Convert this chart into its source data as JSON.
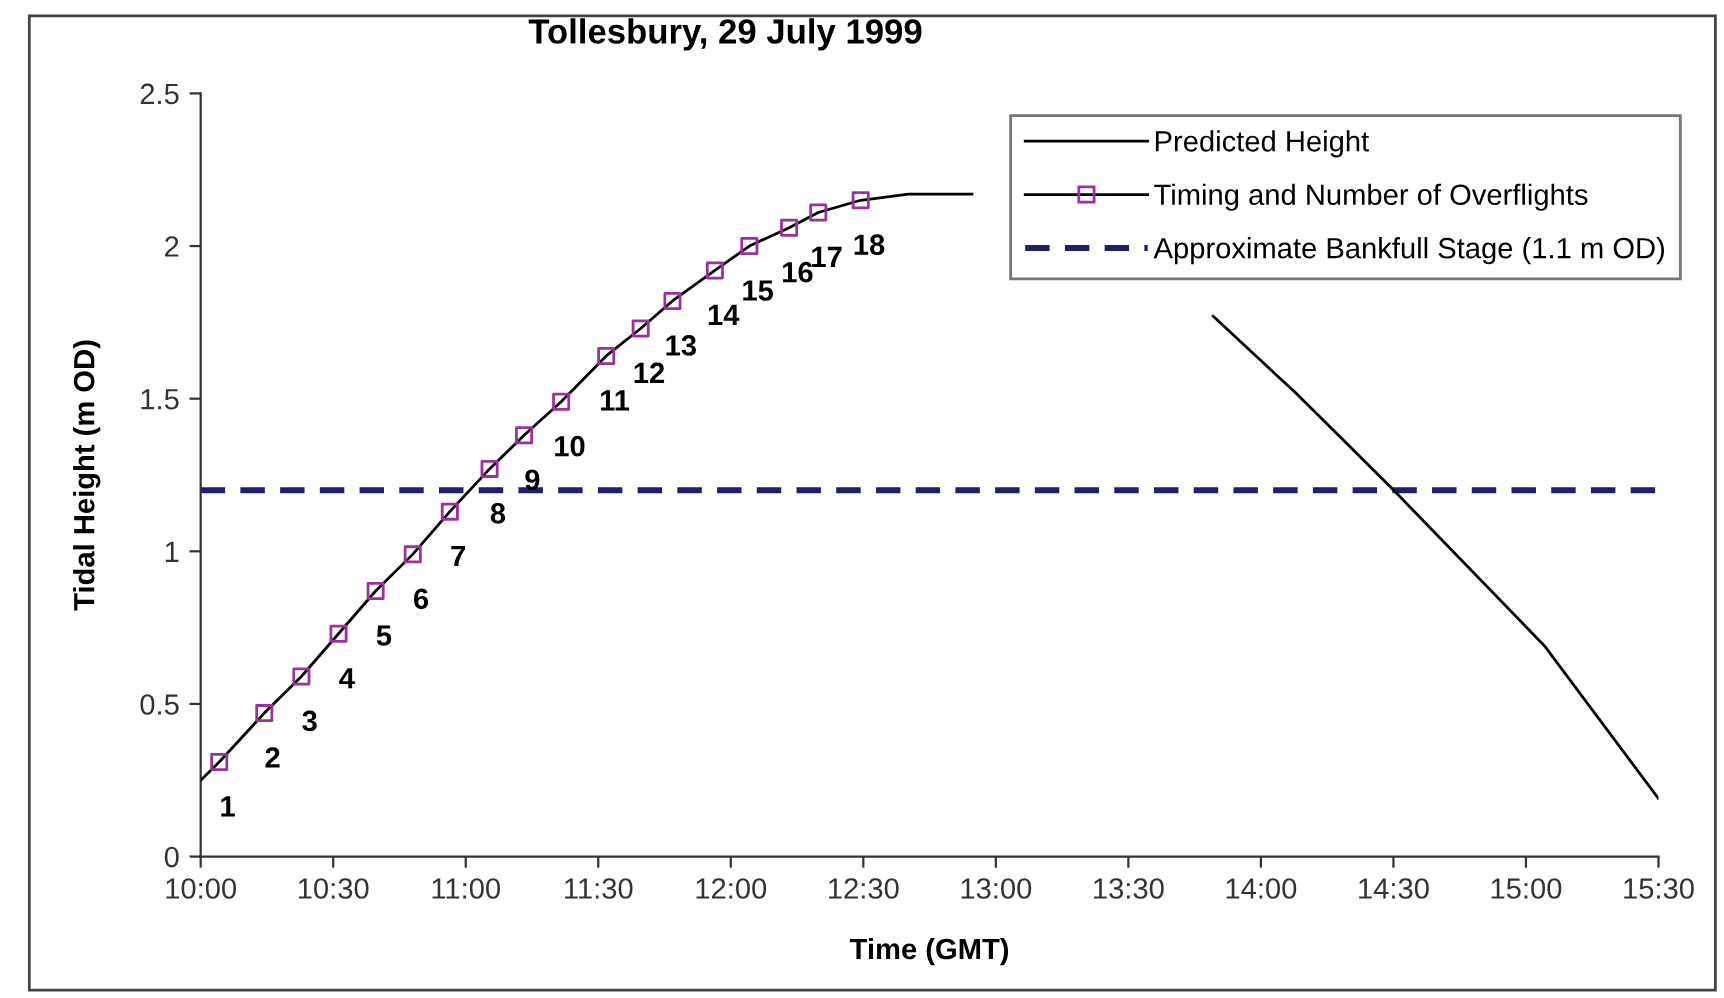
{
  "chart_data": {
    "type": "line",
    "title": "Tollesbury, 29 July 1999",
    "xlabel": "Time (GMT)",
    "ylabel": "Tidal Height (m OD)",
    "series": [
      {
        "name": "Predicted Height",
        "color": "#000000",
        "marker": "none",
        "x": [
          10.0,
          10.07,
          10.24,
          10.38,
          10.52,
          10.66,
          10.8,
          10.94,
          11.09,
          11.22,
          11.36,
          11.53,
          11.66,
          11.78,
          11.94,
          12.07,
          12.22,
          12.33,
          12.49,
          12.67,
          12.91,
          13.0,
          13.82,
          14.13,
          14.49,
          15.07,
          15.5
        ],
        "values": [
          0.25,
          0.31,
          0.47,
          0.59,
          0.73,
          0.87,
          0.99,
          1.13,
          1.27,
          1.38,
          1.49,
          1.64,
          1.73,
          1.82,
          1.92,
          2.0,
          2.06,
          2.11,
          2.15,
          2.17,
          2.17,
          null,
          1.77,
          1.52,
          1.21,
          0.69,
          0.19
        ]
      },
      {
        "name": "Timing and Number of Overflights",
        "type": "scatter",
        "color": "#993399",
        "marker": "square",
        "x": [
          10.07,
          10.24,
          10.38,
          10.52,
          10.66,
          10.8,
          10.94,
          11.09,
          11.22,
          11.36,
          11.53,
          11.66,
          11.78,
          11.94,
          12.07,
          12.22,
          12.33,
          12.49
        ],
        "values": [
          0.31,
          0.47,
          0.59,
          0.73,
          0.87,
          0.99,
          1.13,
          1.27,
          1.38,
          1.49,
          1.64,
          1.73,
          1.82,
          1.92,
          2.0,
          2.06,
          2.11,
          2.15
        ]
      }
    ],
    "annotations": [
      {
        "text": "1",
        "x": 10.07,
        "y": 0.31
      },
      {
        "text": "2",
        "x": 10.24,
        "y": 0.47
      },
      {
        "text": "3",
        "x": 10.38,
        "y": 0.59
      },
      {
        "text": "4",
        "x": 10.52,
        "y": 0.73
      },
      {
        "text": "5",
        "x": 10.66,
        "y": 0.87
      },
      {
        "text": "6",
        "x": 10.8,
        "y": 0.99
      },
      {
        "text": "7",
        "x": 10.94,
        "y": 1.13
      },
      {
        "text": "8",
        "x": 11.09,
        "y": 1.27
      },
      {
        "text": "9",
        "x": 11.22,
        "y": 1.38
      },
      {
        "text": "10",
        "x": 11.36,
        "y": 1.49
      },
      {
        "text": "11",
        "x": 11.53,
        "y": 1.64
      },
      {
        "text": "12",
        "x": 11.66,
        "y": 1.73
      },
      {
        "text": "13",
        "x": 11.78,
        "y": 1.82
      },
      {
        "text": "14",
        "x": 11.94,
        "y": 1.92
      },
      {
        "text": "15",
        "x": 12.07,
        "y": 2.0
      },
      {
        "text": "16",
        "x": 12.22,
        "y": 2.06
      },
      {
        "text": "17",
        "x": 12.33,
        "y": 2.11
      },
      {
        "text": "18",
        "x": 12.49,
        "y": 2.15
      }
    ],
    "ref_lines": [
      {
        "axis": "y",
        "value": 1.2,
        "label": "Approximate Bankfull Stage (1.1 m OD)",
        "color": "#1f1f6e",
        "line_style": "dashed"
      }
    ],
    "xlim": [
      10,
      15.5
    ],
    "xticks": [
      {
        "value": 10,
        "label": "10:00"
      },
      {
        "value": 10.5,
        "label": "10:30"
      },
      {
        "value": 11,
        "label": "11:00"
      },
      {
        "value": 11.5,
        "label": "11:30"
      },
      {
        "value": 12,
        "label": "12:00"
      },
      {
        "value": 12.5,
        "label": "12:30"
      },
      {
        "value": 13,
        "label": "13:00"
      },
      {
        "value": 13.5,
        "label": "13:30"
      },
      {
        "value": 14,
        "label": "14:00"
      },
      {
        "value": 14.5,
        "label": "14:30"
      },
      {
        "value": 15,
        "label": "15:00"
      },
      {
        "value": 15.5,
        "label": "15:30"
      }
    ],
    "ylim": [
      0,
      2.5
    ],
    "yticks": [
      0,
      0.5,
      1,
      1.5,
      2,
      2.5
    ],
    "grid": false,
    "legend": "top right"
  }
}
